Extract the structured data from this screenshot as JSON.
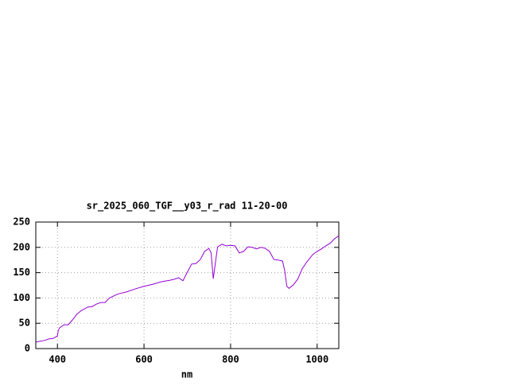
{
  "chart_data": {
    "type": "line",
    "title": "sr_2025_060_TGF__y03_r_rad 11-20-00",
    "x_label": "nm",
    "x": [
      350,
      370,
      380,
      390,
      400,
      402,
      405,
      415,
      425,
      435,
      445,
      455,
      470,
      480,
      490,
      500,
      510,
      520,
      540,
      560,
      580,
      600,
      620,
      640,
      660,
      670,
      680,
      690,
      700,
      710,
      720,
      730,
      740,
      750,
      755,
      760,
      765,
      770,
      780,
      790,
      800,
      810,
      820,
      830,
      840,
      850,
      860,
      870,
      880,
      890,
      900,
      910,
      920,
      925,
      930,
      935,
      945,
      955,
      965,
      975,
      990,
      1000,
      1010,
      1020,
      1030,
      1040,
      1050
    ],
    "series": [
      {
        "color": "#9400d3",
        "values": [
          13,
          16,
          19,
          20,
          25,
          36,
          41,
          47,
          47,
          57,
          68,
          75,
          82,
          83,
          88,
          91,
          91,
          100,
          108,
          112,
          118,
          123,
          127,
          132,
          135,
          137,
          140,
          134,
          151,
          167,
          168,
          176,
          192,
          198,
          189,
          138,
          170,
          201,
          206,
          203,
          204,
          203,
          189,
          192,
          201,
          200,
          197,
          200,
          198,
          192,
          176,
          175,
          173,
          154,
          123,
          119,
          126,
          137,
          157,
          170,
          186,
          192,
          197,
          203,
          208,
          217,
          223
        ]
      }
    ],
    "xlim": [
      350,
      1050
    ],
    "ylim": [
      0,
      250
    ],
    "xticks": [
      400,
      600,
      800,
      1000
    ],
    "yticks": [
      0,
      50,
      100,
      150,
      200,
      250
    ],
    "grid": true
  }
}
